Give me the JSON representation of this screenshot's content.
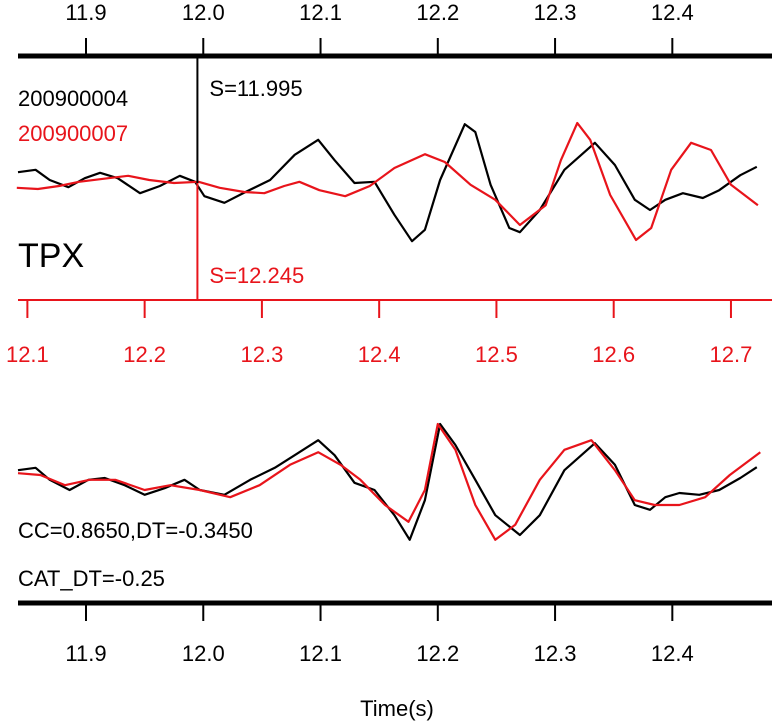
{
  "chart_data": {
    "type": "seismogram",
    "station": "TPX",
    "xlabel": "Time(s)",
    "xlim": [
      11.842,
      12.485
    ],
    "xticks": [
      11.9,
      {
        "value": 12.0,
        "label": "12.0"
      },
      12.1,
      12.2,
      12.3,
      12.4
    ],
    "x2lim": [
      12.092,
      12.735
    ],
    "x2ticks": [
      12.1,
      12.2,
      12.3,
      12.4,
      12.5,
      12.6,
      12.7
    ],
    "ylim": [
      -1.1,
      1.1
    ],
    "top_series": [
      {
        "name": "200900004",
        "color": "#000000",
        "axis": "x",
        "pick": {
          "value": 11.995,
          "label": "S=11.995"
        },
        "x": [
          11.842,
          11.857,
          11.869,
          11.885,
          11.899,
          11.912,
          11.927,
          11.946,
          11.963,
          11.98,
          11.993,
          12.001,
          12.018,
          12.036,
          12.057,
          12.078,
          12.098,
          12.112,
          12.129,
          12.146,
          12.163,
          12.178,
          12.189,
          12.202,
          12.223,
          12.232,
          12.245,
          12.261,
          12.27,
          12.287,
          12.308,
          12.334,
          12.351,
          12.368,
          12.381,
          12.394,
          12.409,
          12.426,
          12.44,
          12.458,
          12.472
        ],
        "values": [
          0.18,
          0.22,
          0.05,
          -0.07,
          0.08,
          0.17,
          0.08,
          -0.17,
          -0.05,
          0.12,
          0.02,
          -0.22,
          -0.33,
          -0.15,
          0.05,
          0.47,
          0.72,
          0.38,
          0,
          0.02,
          -0.53,
          -0.97,
          -0.78,
          0.05,
          0.98,
          0.85,
          -0.03,
          -0.75,
          -0.82,
          -0.45,
          0.22,
          0.67,
          0.3,
          -0.28,
          -0.45,
          -0.28,
          -0.17,
          -0.25,
          -0.12,
          0.13,
          0.27
        ]
      },
      {
        "name": "200900007",
        "color": "#e8141b",
        "axis": "x2",
        "pick": {
          "value": 12.245,
          "label": "S=12.245"
        },
        "x": [
          12.091,
          12.109,
          12.127,
          12.144,
          12.169,
          12.186,
          12.204,
          12.225,
          12.246,
          12.264,
          12.285,
          12.302,
          12.319,
          12.332,
          12.349,
          12.371,
          12.392,
          12.413,
          12.439,
          12.456,
          12.478,
          12.499,
          12.52,
          12.542,
          12.555,
          12.569,
          12.58,
          12.597,
          12.619,
          12.632,
          12.649,
          12.666,
          12.683,
          12.7,
          12.723
        ],
        "values": [
          -0.08,
          -0.1,
          -0.05,
          0.02,
          0.08,
          0.12,
          0.05,
          0,
          0.02,
          -0.08,
          -0.15,
          -0.17,
          -0.05,
          0.02,
          -0.12,
          -0.22,
          -0.05,
          0.25,
          0.48,
          0.35,
          -0.03,
          -0.28,
          -0.7,
          -0.37,
          0.38,
          1.0,
          0.72,
          -0.2,
          -0.95,
          -0.75,
          0.22,
          0.67,
          0.55,
          -0.03,
          -0.37
        ]
      }
    ],
    "bottom_series": [
      {
        "color": "#000000",
        "x": [
          11.842,
          11.857,
          11.869,
          11.886,
          11.902,
          11.916,
          11.933,
          11.95,
          11.967,
          11.984,
          11.997,
          12.018,
          12.04,
          12.061,
          12.078,
          12.098,
          12.112,
          12.129,
          12.146,
          12.163,
          12.176,
          12.189,
          12.202,
          12.215,
          12.232,
          12.249,
          12.27,
          12.287,
          12.308,
          12.334,
          12.351,
          12.368,
          12.381,
          12.394,
          12.406,
          12.423,
          12.44,
          12.458,
          12.472
        ],
        "values": [
          0.13,
          0.17,
          -0.03,
          -0.2,
          -0.03,
          0,
          -0.12,
          -0.28,
          -0.17,
          -0.03,
          -0.2,
          -0.28,
          -0.03,
          0.17,
          0.38,
          0.63,
          0.38,
          -0.08,
          -0.2,
          -0.62,
          -1.03,
          -0.37,
          0.9,
          0.55,
          -0.03,
          -0.62,
          -0.95,
          -0.62,
          0.13,
          0.58,
          0.22,
          -0.45,
          -0.53,
          -0.32,
          -0.25,
          -0.28,
          -0.2,
          0,
          0.18
        ]
      },
      {
        "color": "#e8141b",
        "x": [
          11.842,
          11.861,
          11.882,
          11.903,
          11.925,
          11.95,
          11.972,
          11.997,
          12.023,
          12.048,
          12.074,
          12.098,
          12.117,
          12.134,
          12.155,
          12.175,
          12.189,
          12.2,
          12.215,
          12.232,
          12.249,
          12.266,
          12.287,
          12.308,
          12.331,
          12.351,
          12.368,
          12.385,
          12.406,
          12.428,
          12.449,
          12.475
        ],
        "values": [
          0.08,
          0.05,
          -0.12,
          -0.03,
          -0.03,
          -0.2,
          -0.12,
          -0.2,
          -0.32,
          -0.12,
          0.22,
          0.43,
          0.22,
          -0.03,
          -0.45,
          -0.73,
          -0.2,
          0.9,
          0.47,
          -0.45,
          -1.03,
          -0.78,
          -0.03,
          0.47,
          0.63,
          0.13,
          -0.37,
          -0.45,
          -0.45,
          -0.32,
          0.05,
          0.43
        ]
      }
    ],
    "annotations": [
      "CC=0.8650,DT=-0.3450",
      "CAT_DT=-0.25"
    ]
  }
}
